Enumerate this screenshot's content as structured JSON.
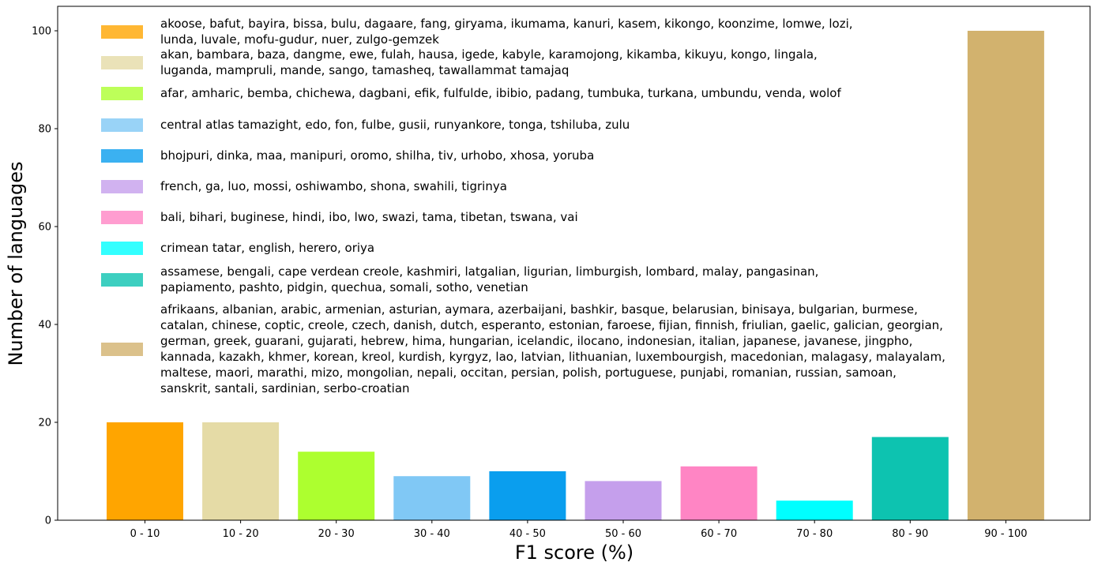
{
  "chart_data": {
    "type": "bar",
    "xlabel": "F1 score (%)",
    "ylabel": "Number of languages",
    "ylim": [
      0,
      105
    ],
    "yticks": [
      0,
      20,
      40,
      60,
      80,
      100
    ],
    "grid": false,
    "legend_placement": "upper-left",
    "categories": [
      "0 - 10",
      "10 - 20",
      "20 - 30",
      "30 - 40",
      "40 - 50",
      "50 - 60",
      "60 - 70",
      "70 - 80",
      "80 - 90",
      "90 - 100"
    ],
    "values": [
      20,
      20,
      14,
      9,
      10,
      8,
      11,
      4,
      17,
      100
    ],
    "colors": [
      "#ffa500",
      "#e5dba6",
      "#adff2f",
      "#80c8f5",
      "#0a9eee",
      "#c59fec",
      "#ff85c4",
      "#00ffff",
      "#0dc3b0",
      "#d2b26e"
    ],
    "legend": [
      {
        "color": "#ffa500",
        "lines": [
          "akoose, bafut, bayira, bissa, bulu, dagaare, fang, giryama, ikumama, kanuri, kasem, kikongo, koonzime, lomwe, lozi,",
          "lunda, luvale, mofu-gudur, nuer, zulgo-gemzek"
        ]
      },
      {
        "color": "#e5dba6",
        "lines": [
          "akan, bambara, baza, dangme, ewe, fulah, hausa, igede, kabyle, karamojong, kikamba, kikuyu, kongo, lingala,",
          "luganda, mampruli, mande, sango, tamasheq, tawallammat tamajaq"
        ]
      },
      {
        "color": "#adff2f",
        "lines": [
          "afar, amharic, bemba, chichewa, dagbani, efik, fulfulde, ibibio, padang, tumbuka, turkana, umbundu, venda, wolof"
        ]
      },
      {
        "color": "#80c8f5",
        "lines": [
          "central atlas tamazight, edo, fon, fulbe, gusii, runyankore, tonga, tshiluba, zulu"
        ]
      },
      {
        "color": "#0a9eee",
        "lines": [
          "bhojpuri, dinka, maa, manipuri, oromo, shilha, tiv, urhobo, xhosa, yoruba"
        ]
      },
      {
        "color": "#c59fec",
        "lines": [
          "french, ga, luo, mossi, oshiwambo, shona, swahili, tigrinya"
        ]
      },
      {
        "color": "#ff85c4",
        "lines": [
          "bali, bihari, buginese, hindi, ibo, lwo, swazi, tama, tibetan, tswana, vai"
        ]
      },
      {
        "color": "#00ffff",
        "lines": [
          "crimean tatar, english, herero, oriya"
        ]
      },
      {
        "color": "#0dc3b0",
        "lines": [
          "assamese, bengali, cape verdean creole, kashmiri, latgalian, ligurian, limburgish, lombard, malay, pangasinan,",
          "papiamento, pashto, pidgin, quechua, somali, sotho, venetian"
        ]
      },
      {
        "color": "#d2b26e",
        "lines": [
          "afrikaans, albanian, arabic, armenian, asturian, aymara, azerbaijani, bashkir, basque, belarusian, binisaya, bulgarian, burmese,",
          "catalan, chinese, coptic, creole, czech, danish, dutch, esperanto, estonian, faroese, fijian, finnish, friulian, gaelic, galician, georgian,",
          "german, greek, guarani, gujarati, hebrew, hima, hungarian, icelandic, ilocano, indonesian, italian, japanese, javanese, jingpho,",
          "kannada, kazakh, khmer, korean, kreol, kurdish, kyrgyz, lao, latvian, lithuanian, luxembourgish, macedonian, malagasy, malayalam,",
          "maltese, maori, marathi, mizo, mongolian, nepali, occitan, persian, polish, portuguese, punjabi, romanian, russian, samoan,",
          "sanskrit, santali, sardinian, serbo-croatian"
        ]
      }
    ]
  }
}
